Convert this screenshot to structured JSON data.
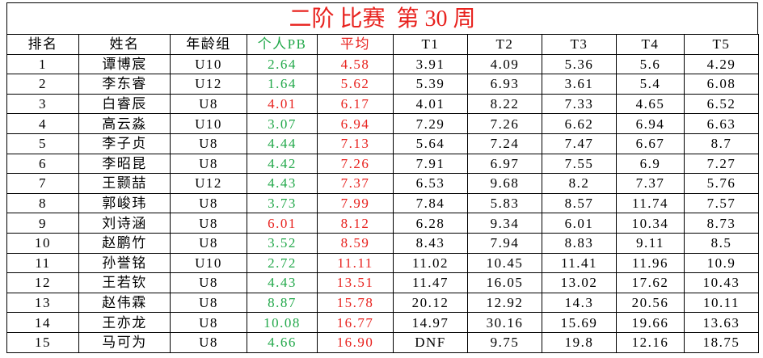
{
  "title": "二阶 比赛  第 30 周",
  "table": {
    "header": [
      "排名",
      "姓名",
      "年龄组",
      "个人PB",
      "平均",
      "T1",
      "T2",
      "T3",
      "T4",
      "T5"
    ],
    "header_colors": [
      "#000000",
      "#000000",
      "#000000",
      "#22a84a",
      "#e8231f",
      "#000000",
      "#000000",
      "#000000",
      "#000000",
      "#000000"
    ],
    "avg_color": "#e8231f",
    "rows": [
      {
        "cells": [
          "1",
          "谭博宸",
          "U10",
          "2.64",
          "4.58",
          "3.91",
          "4.09",
          "5.36",
          "5.6",
          "4.29"
        ],
        "pb_color": "#22a84a"
      },
      {
        "cells": [
          "2",
          "李东睿",
          "U12",
          "1.64",
          "5.62",
          "5.39",
          "6.93",
          "3.61",
          "5.4",
          "6.08"
        ],
        "pb_color": "#22a84a"
      },
      {
        "cells": [
          "3",
          "白睿辰",
          "U8",
          "4.01",
          "6.17",
          "4.01",
          "8.22",
          "7.33",
          "4.65",
          "6.52"
        ],
        "pb_color": "#e8231f"
      },
      {
        "cells": [
          "4",
          "高云淼",
          "U10",
          "3.07",
          "6.94",
          "7.29",
          "7.26",
          "6.62",
          "6.94",
          "6.63"
        ],
        "pb_color": "#22a84a"
      },
      {
        "cells": [
          "5",
          "李子贞",
          "U8",
          "4.44",
          "7.13",
          "5.64",
          "7.24",
          "7.47",
          "6.67",
          "8.7"
        ],
        "pb_color": "#22a84a"
      },
      {
        "cells": [
          "6",
          "李昭昆",
          "U8",
          "4.42",
          "7.26",
          "7.91",
          "6.97",
          "7.55",
          "6.9",
          "7.27"
        ],
        "pb_color": "#22a84a"
      },
      {
        "cells": [
          "7",
          "王颢喆",
          "U12",
          "4.43",
          "7.37",
          "6.53",
          "9.68",
          "8.2",
          "7.37",
          "5.76"
        ],
        "pb_color": "#22a84a"
      },
      {
        "cells": [
          "8",
          "郭峻玮",
          "U8",
          "3.73",
          "7.99",
          "7.84",
          "5.83",
          "8.57",
          "11.74",
          "7.57"
        ],
        "pb_color": "#22a84a"
      },
      {
        "cells": [
          "9",
          "刘诗涵",
          "U8",
          "6.01",
          "8.12",
          "6.28",
          "9.34",
          "6.01",
          "10.34",
          "8.73"
        ],
        "pb_color": "#e8231f"
      },
      {
        "cells": [
          "10",
          "赵鹏竹",
          "U8",
          "3.52",
          "8.59",
          "8.43",
          "7.94",
          "8.83",
          "9.11",
          "8.5"
        ],
        "pb_color": "#22a84a"
      },
      {
        "cells": [
          "11",
          "孙誉铭",
          "U10",
          "2.72",
          "11.11",
          "11.02",
          "10.45",
          "11.41",
          "11.96",
          "10.9"
        ],
        "pb_color": "#22a84a"
      },
      {
        "cells": [
          "12",
          "王若钦",
          "U8",
          "4.43",
          "13.51",
          "11.47",
          "16.05",
          "13.02",
          "17.62",
          "10.43"
        ],
        "pb_color": "#22a84a"
      },
      {
        "cells": [
          "13",
          "赵伟霖",
          "U8",
          "8.87",
          "15.78",
          "20.12",
          "12.92",
          "14.3",
          "20.56",
          "10.11"
        ],
        "pb_color": "#22a84a"
      },
      {
        "cells": [
          "14",
          "王亦龙",
          "U8",
          "10.08",
          "16.77",
          "14.97",
          "30.16",
          "15.69",
          "19.66",
          "13.63"
        ],
        "pb_color": "#22a84a"
      },
      {
        "cells": [
          "15",
          "马可为",
          "U8",
          "4.66",
          "16.90",
          "DNF",
          "9.75",
          "19.8",
          "12.16",
          "18.75"
        ],
        "pb_color": "#22a84a"
      }
    ]
  }
}
